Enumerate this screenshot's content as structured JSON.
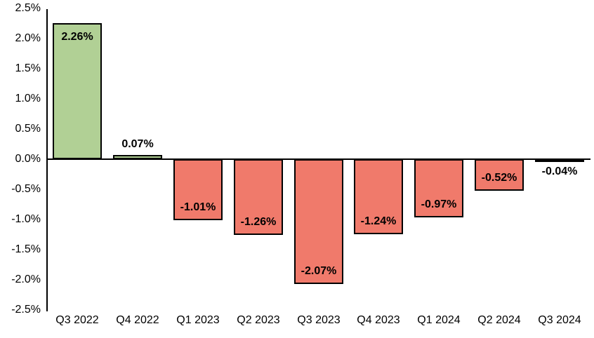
{
  "chart_data": {
    "type": "bar",
    "title": "",
    "xlabel": "",
    "ylabel": "",
    "categories": [
      "Q3 2022",
      "Q4 2022",
      "Q1 2023",
      "Q2 2023",
      "Q3 2023",
      "Q4 2023",
      "Q1 2024",
      "Q2 2024",
      "Q3 2024"
    ],
    "values": [
      2.26,
      0.07,
      -1.01,
      -1.26,
      -2.07,
      -1.24,
      -0.97,
      -0.52,
      -0.04
    ],
    "data_labels": [
      "2.26%",
      "0.07%",
      "-1.01%",
      "-1.26%",
      "-2.07%",
      "-1.24%",
      "-0.97%",
      "-0.52%",
      "-0.04%"
    ],
    "yticks": [
      "2.5%",
      "2.0%",
      "1.5%",
      "1.0%",
      "0.5%",
      "0.0%",
      "-0.5%",
      "-1.0%",
      "-1.5%",
      "-2.0%",
      "-2.5%"
    ],
    "ytick_values": [
      2.5,
      2.0,
      1.5,
      1.0,
      0.5,
      0.0,
      -0.5,
      -1.0,
      -1.5,
      -2.0,
      -2.5
    ],
    "ylim": [
      -2.5,
      2.5
    ],
    "grid": false,
    "legend": null,
    "colors": {
      "positive_fill": "#b1d095",
      "negative_fill": "#f07a6b",
      "bar_border": "#000000",
      "axis": "#000000",
      "text": "#000000",
      "background": "#ffffff"
    }
  }
}
